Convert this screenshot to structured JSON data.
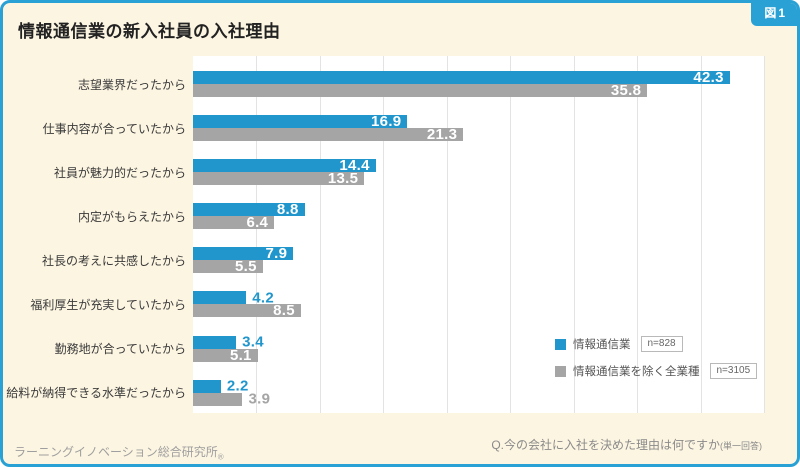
{
  "badge": "図1",
  "title": "情報通信業の新入社員の入社理由",
  "source": "ラーニングイノベーション総合研究所",
  "source_mark": "®",
  "question": "Q.今の会社に入社を決めた理由は何ですか",
  "question_sub": "(単一回答)",
  "colors": {
    "frame_blue": "#2aa1d5",
    "industry_blue": "#2196cc",
    "all_industries_gray": "#a5a5a5",
    "background_cream": "#fcf5e2",
    "plot_white": "#ffffff",
    "grid_gray": "#e3e3e3"
  },
  "legend": {
    "items": [
      {
        "label": "情報通信業",
        "n_badge": "n=828",
        "series": "industry"
      },
      {
        "label": "情報通信業を除く全業種",
        "n_badge": "n=3105",
        "series": "all"
      }
    ]
  },
  "chart_data": {
    "type": "bar",
    "orientation": "horizontal",
    "title": "情報通信業の新入社員の入社理由",
    "categories": [
      "志望業界だったから",
      "仕事内容が合っていたから",
      "社員が魅力的だったから",
      "内定がもらえたから",
      "社長の考えに共感したから",
      "福利厚生が充実していたから",
      "勤務地が合っていたから",
      "給料が納得できる水準だったから"
    ],
    "series": [
      {
        "name": "情報通信業",
        "n_label": "n=828",
        "color": "#2196cc",
        "values": [
          42.3,
          16.9,
          14.4,
          8.8,
          7.9,
          4.2,
          3.4,
          2.2
        ]
      },
      {
        "name": "情報通信業を除く全業種",
        "n_label": "n=3105",
        "color": "#a5a5a5",
        "values": [
          35.8,
          21.3,
          13.5,
          6.4,
          5.5,
          8.5,
          5.1,
          3.9
        ]
      }
    ],
    "xlim": [
      0,
      45
    ],
    "x_ticks": [
      0,
      5,
      10,
      15,
      20,
      25,
      30,
      35,
      40,
      45
    ],
    "x_unit_suffix": "(%)",
    "grid": true,
    "legend_position": "inside bottom-right"
  }
}
